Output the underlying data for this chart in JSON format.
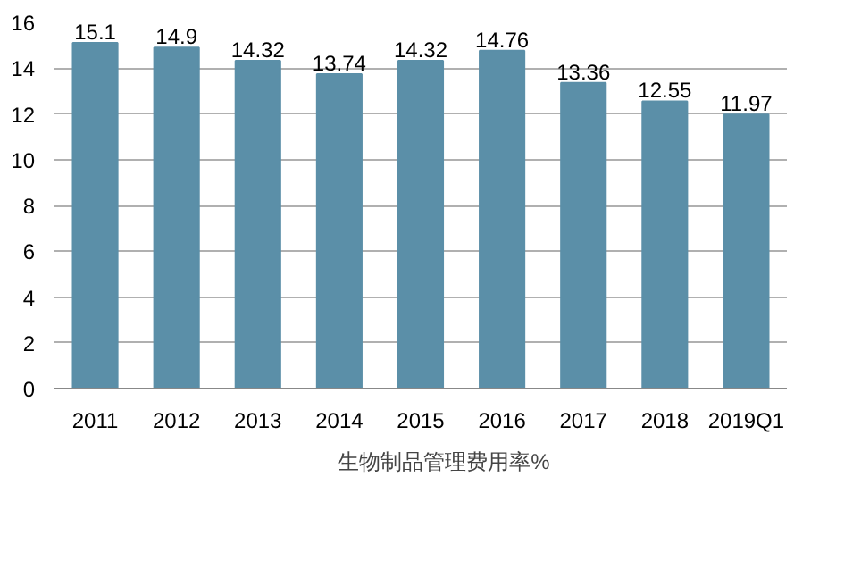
{
  "chart_data": {
    "type": "bar",
    "categories": [
      "2011",
      "2012",
      "2013",
      "2014",
      "2015",
      "2016",
      "2017",
      "2018",
      "2019Q1"
    ],
    "series": [
      {
        "name": "生物制品管理费用率%",
        "color": "#5b8fa8",
        "values": [
          15.1,
          14.9,
          14.32,
          13.74,
          14.32,
          14.76,
          13.36,
          12.55,
          11.97
        ]
      }
    ],
    "ylim": [
      0,
      16
    ],
    "yticks": [
      0,
      2,
      4,
      6,
      8,
      10,
      12,
      14,
      16
    ],
    "grid": "y",
    "legend": "bottom",
    "data_labels": true
  }
}
